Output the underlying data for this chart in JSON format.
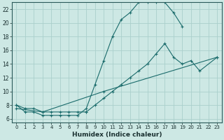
{
  "xlabel": "Humidex (Indice chaleur)",
  "bg_color": "#cde8e4",
  "grid_color": "#aacfcc",
  "line_color": "#1a6b6b",
  "xlim": [
    -0.5,
    23.5
  ],
  "ylim": [
    5.5,
    23.0
  ],
  "yticks": [
    6,
    8,
    10,
    12,
    14,
    16,
    18,
    20,
    22
  ],
  "xticks": [
    0,
    1,
    2,
    3,
    4,
    5,
    6,
    7,
    8,
    9,
    10,
    11,
    12,
    13,
    14,
    15,
    16,
    17,
    18,
    19,
    20,
    21,
    22,
    23
  ],
  "line1_x": [
    0,
    1,
    2,
    3,
    4,
    5,
    6,
    7,
    8,
    9,
    10,
    11,
    12,
    13,
    14,
    15,
    16,
    17,
    18,
    19
  ],
  "line1_y": [
    8.0,
    7.0,
    7.0,
    6.5,
    6.5,
    6.5,
    6.5,
    6.5,
    7.5,
    11.0,
    14.5,
    18.0,
    20.5,
    21.5,
    23.0,
    23.0,
    23.0,
    23.0,
    21.5,
    19.5
  ],
  "line2a_x": [
    0,
    1,
    2,
    3,
    4,
    5,
    6,
    7,
    8
  ],
  "line2a_y": [
    8.0,
    7.5,
    7.5,
    7.0,
    7.0,
    7.0,
    7.0,
    7.0,
    7.0
  ],
  "line2b_x": [
    8,
    9,
    10,
    11,
    12,
    13,
    14,
    15,
    16,
    17,
    18,
    19,
    20,
    21,
    23
  ],
  "line2b_y": [
    7.0,
    8.0,
    9.0,
    10.0,
    11.0,
    12.0,
    13.0,
    14.0,
    15.5,
    17.0,
    15.0,
    14.0,
    14.5,
    13.0,
    15.0
  ],
  "line3_x": [
    0,
    3,
    10,
    23
  ],
  "line3_y": [
    7.5,
    7.0,
    10.0,
    15.0
  ]
}
